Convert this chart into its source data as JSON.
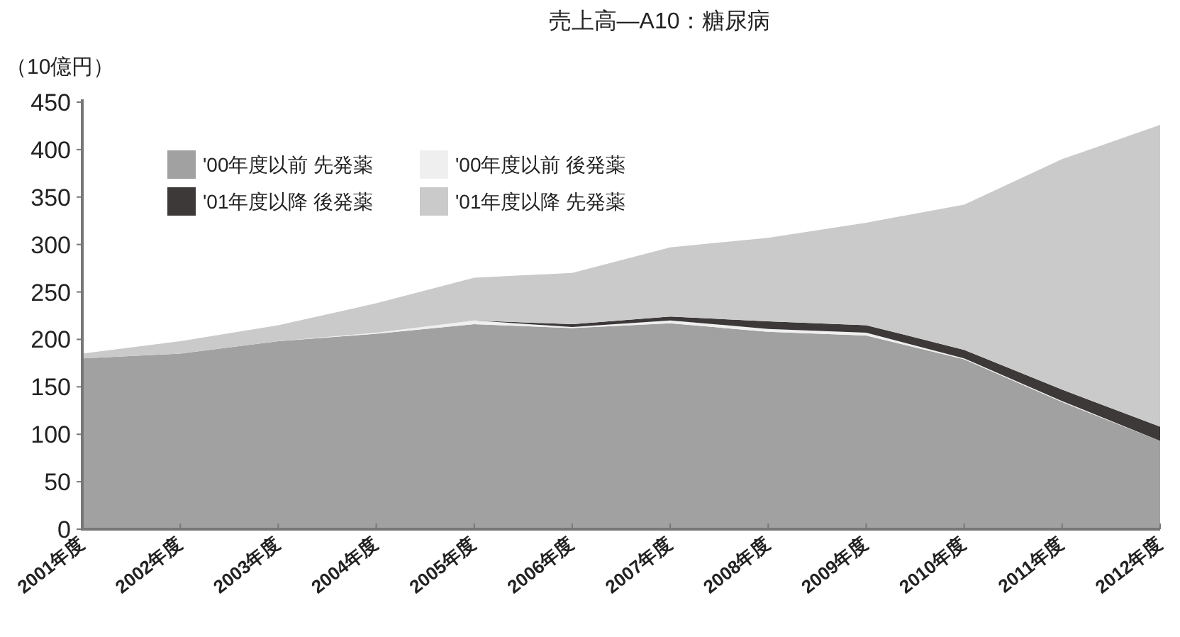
{
  "chart_data": {
    "type": "area",
    "stacked": true,
    "title": "売上高—A10：糖尿病",
    "ylabel": "（10億円）",
    "categories": [
      "2001年度",
      "2002年度",
      "2003年度",
      "2004年度",
      "2005年度",
      "2006年度",
      "2007年度",
      "2008年度",
      "2009年度",
      "2010年度",
      "2011年度",
      "2012年度"
    ],
    "series": [
      {
        "name": "'00年度以前 先発薬",
        "color": "#a0a1a0",
        "values": [
          180,
          185,
          198,
          206,
          216,
          212,
          217,
          208,
          204,
          179,
          134,
          93
        ]
      },
      {
        "name": "'00年度以前 後発薬",
        "color": "#efefef",
        "values": [
          0,
          0,
          0,
          1,
          4,
          1,
          3,
          3,
          3,
          1,
          1,
          0
        ]
      },
      {
        "name": "'01年度以降 後発薬",
        "color": "#3d3939",
        "values": [
          0,
          0,
          0,
          0,
          0,
          3,
          4,
          8,
          8,
          9,
          12,
          15
        ]
      },
      {
        "name": "'01年度以降 先発薬",
        "color": "#c9cac9",
        "values": [
          5,
          13,
          17,
          31,
          45,
          54,
          73,
          88,
          108,
          153,
          243,
          318
        ]
      }
    ],
    "ylim": [
      0,
      450
    ],
    "yticks": [
      0,
      50,
      100,
      150,
      200,
      250,
      300,
      350,
      400,
      450
    ],
    "grid": false,
    "legend": "top left"
  }
}
